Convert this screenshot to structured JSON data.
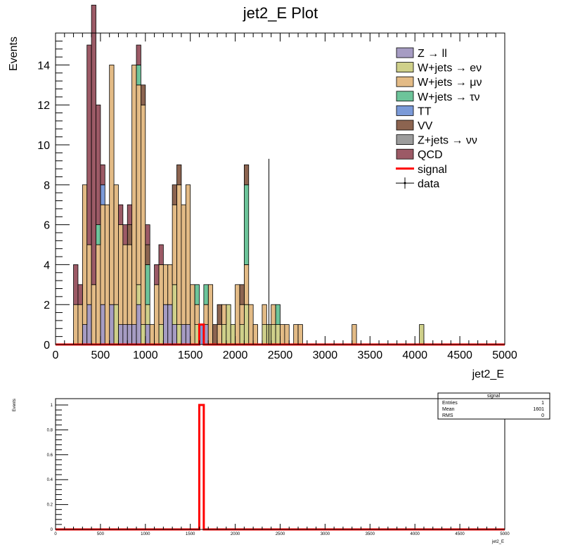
{
  "chart_data": [
    {
      "type": "stacked-step-histogram",
      "title": "jet2_E Plot",
      "xlabel": "jet2_E",
      "ylabel": "Events",
      "xlim": [
        0,
        5000
      ],
      "ylim": [
        0,
        15.6
      ],
      "bin_width": 50,
      "x_ticks": [
        "0",
        "500",
        "1000",
        "1500",
        "2000",
        "2500",
        "3000",
        "3500",
        "4000",
        "4500",
        "5000"
      ],
      "y_ticks": [
        "0",
        "2",
        "4",
        "6",
        "8",
        "10",
        "12",
        "14"
      ],
      "legend_position": "top-right",
      "legend": [
        {
          "label": "Z → ll",
          "color": "#a69cc3",
          "kind": "box"
        },
        {
          "label": "W+jets → eν",
          "color": "#cfd08a",
          "kind": "box"
        },
        {
          "label": "W+jets → μν",
          "color": "#e3bb86",
          "kind": "box"
        },
        {
          "label": "W+jets → τν",
          "color": "#6dc49a",
          "kind": "box"
        },
        {
          "label": "TT",
          "color": "#7b9ad8",
          "kind": "box"
        },
        {
          "label": "VV",
          "color": "#8c6450",
          "kind": "box"
        },
        {
          "label": "Z+jets → νν",
          "color": "#9c9c9c",
          "kind": "box"
        },
        {
          "label": "QCD",
          "color": "#9c5a66",
          "kind": "box"
        },
        {
          "label": "signal",
          "color": "#ff0000",
          "kind": "line"
        },
        {
          "label": "data",
          "color": "#000000",
          "kind": "marker"
        }
      ],
      "series": [
        {
          "name": "Z → ll",
          "color": "#a69cc3",
          "bins": [
            [
              300,
              1
            ],
            [
              350,
              2
            ],
            [
              400,
              0
            ],
            [
              450,
              0
            ],
            [
              500,
              2
            ],
            [
              550,
              0
            ],
            [
              600,
              2
            ],
            [
              650,
              0
            ],
            [
              700,
              1
            ],
            [
              750,
              1
            ],
            [
              800,
              1
            ],
            [
              850,
              1
            ],
            [
              900,
              2
            ],
            [
              950,
              0
            ],
            [
              1000,
              1
            ],
            [
              1050,
              0
            ],
            [
              1100,
              0
            ],
            [
              1150,
              0
            ],
            [
              1200,
              2
            ],
            [
              1250,
              2
            ],
            [
              1300,
              1
            ],
            [
              1350,
              0
            ],
            [
              1400,
              1
            ],
            [
              1450,
              1
            ],
            [
              1500,
              0
            ],
            [
              1600,
              0
            ],
            [
              1650,
              1
            ]
          ]
        },
        {
          "name": "W+jets → eν",
          "color": "#cfd08a",
          "bins": [
            [
              650,
              2
            ],
            [
              900,
              1
            ],
            [
              950,
              1
            ],
            [
              1000,
              1
            ],
            [
              1150,
              1
            ],
            [
              1250,
              0
            ],
            [
              1300,
              2
            ],
            [
              1350,
              1
            ],
            [
              1400,
              0
            ],
            [
              1550,
              1
            ],
            [
              1700,
              0
            ],
            [
              1850,
              1
            ],
            [
              1900,
              2
            ],
            [
              1950,
              1
            ],
            [
              2050,
              1
            ],
            [
              2100,
              2
            ],
            [
              2150,
              0
            ],
            [
              2300,
              1
            ],
            [
              2350,
              1
            ],
            [
              2400,
              1
            ],
            [
              2450,
              1
            ],
            [
              4050,
              1
            ]
          ]
        },
        {
          "name": "W+jets → μν",
          "color": "#e3bb86",
          "bins": [
            [
              200,
              2
            ],
            [
              250,
              2
            ],
            [
              300,
              7
            ],
            [
              350,
              3
            ],
            [
              400,
              3
            ],
            [
              450,
              5
            ],
            [
              500,
              5
            ],
            [
              550,
              7
            ],
            [
              600,
              12
            ],
            [
              650,
              6
            ],
            [
              700,
              5
            ],
            [
              750,
              4
            ],
            [
              800,
              4
            ],
            [
              850,
              13
            ],
            [
              900,
              10
            ],
            [
              950,
              11
            ],
            [
              1000,
              0
            ],
            [
              1050,
              1
            ],
            [
              1100,
              3
            ],
            [
              1150,
              3
            ],
            [
              1200,
              2
            ],
            [
              1250,
              2
            ],
            [
              1300,
              4
            ],
            [
              1350,
              7
            ],
            [
              1400,
              6
            ],
            [
              1450,
              7
            ],
            [
              1500,
              3
            ],
            [
              1550,
              1
            ],
            [
              1600,
              0
            ],
            [
              1650,
              1
            ],
            [
              1700,
              3
            ],
            [
              1750,
              0
            ],
            [
              1800,
              1
            ],
            [
              1850,
              1
            ],
            [
              1900,
              0
            ],
            [
              1950,
              0
            ],
            [
              2000,
              3
            ],
            [
              2050,
              1
            ],
            [
              2100,
              2
            ],
            [
              2150,
              2
            ],
            [
              2200,
              1
            ],
            [
              2250,
              0
            ],
            [
              2300,
              1
            ],
            [
              2350,
              0
            ],
            [
              2400,
              1
            ],
            [
              2450,
              0
            ],
            [
              2500,
              1
            ],
            [
              2550,
              1
            ],
            [
              2650,
              1
            ],
            [
              2700,
              1
            ],
            [
              3300,
              1
            ]
          ]
        },
        {
          "name": "W+jets → τν",
          "color": "#6dc49a",
          "bins": [
            [
              450,
              1
            ],
            [
              900,
              1
            ],
            [
              1000,
              2
            ],
            [
              1550,
              1
            ],
            [
              1650,
              1
            ],
            [
              2100,
              4
            ],
            [
              2450,
              1
            ]
          ]
        },
        {
          "name": "TT",
          "color": "#7b9ad8",
          "bins": [
            [
              500,
              1
            ],
            [
              1600,
              1
            ]
          ]
        },
        {
          "name": "VV",
          "color": "#8c6450",
          "bins": [
            [
              800,
              1
            ],
            [
              950,
              1
            ],
            [
              1000,
              1
            ],
            [
              1300,
              1
            ],
            [
              1350,
              1
            ],
            [
              1750,
              1
            ],
            [
              1800,
              1
            ],
            [
              2050,
              1
            ],
            [
              2100,
              1
            ]
          ]
        },
        {
          "name": "Z+jets → νν",
          "color": "#9c9c9c",
          "bins": []
        },
        {
          "name": "QCD",
          "color": "#9c5a66",
          "bins": [
            [
              200,
              2
            ],
            [
              250,
              1
            ],
            [
              350,
              10
            ],
            [
              400,
              14
            ],
            [
              450,
              6
            ],
            [
              500,
              1
            ],
            [
              700,
              1
            ],
            [
              750,
              1
            ],
            [
              800,
              1
            ],
            [
              900,
              1
            ],
            [
              1000,
              1
            ],
            [
              1100,
              1
            ],
            [
              1150,
              1
            ]
          ]
        }
      ],
      "signal": {
        "name": "signal",
        "color": "#ff0000",
        "bins": [
          [
            1600,
            1
          ]
        ]
      },
      "data_points": [
        {
          "x": 2375,
          "y": 0,
          "ymax": 9.3
        }
      ]
    },
    {
      "type": "step-histogram",
      "title": "",
      "xlabel": "jet2_E",
      "ylabel": "Events",
      "xlim": [
        0,
        5000
      ],
      "ylim": [
        0,
        1.0
      ],
      "x_ticks": [
        "0",
        "500",
        "1000",
        "1500",
        "2000",
        "2500",
        "3000",
        "3500",
        "4000",
        "4500",
        "5000"
      ],
      "y_ticks": [
        "0",
        "0.2",
        "0.4",
        "0.6",
        "0.8",
        "1"
      ],
      "series": [
        {
          "name": "signal",
          "color": "#ff0000",
          "bins": [
            [
              1600,
              1
            ]
          ]
        }
      ],
      "stats_box": {
        "title": "signal",
        "rows": [
          {
            "label": "Entries",
            "value": "1"
          },
          {
            "label": "Mean",
            "value": "1601"
          },
          {
            "label": "RMS",
            "value": "0"
          }
        ]
      }
    }
  ]
}
